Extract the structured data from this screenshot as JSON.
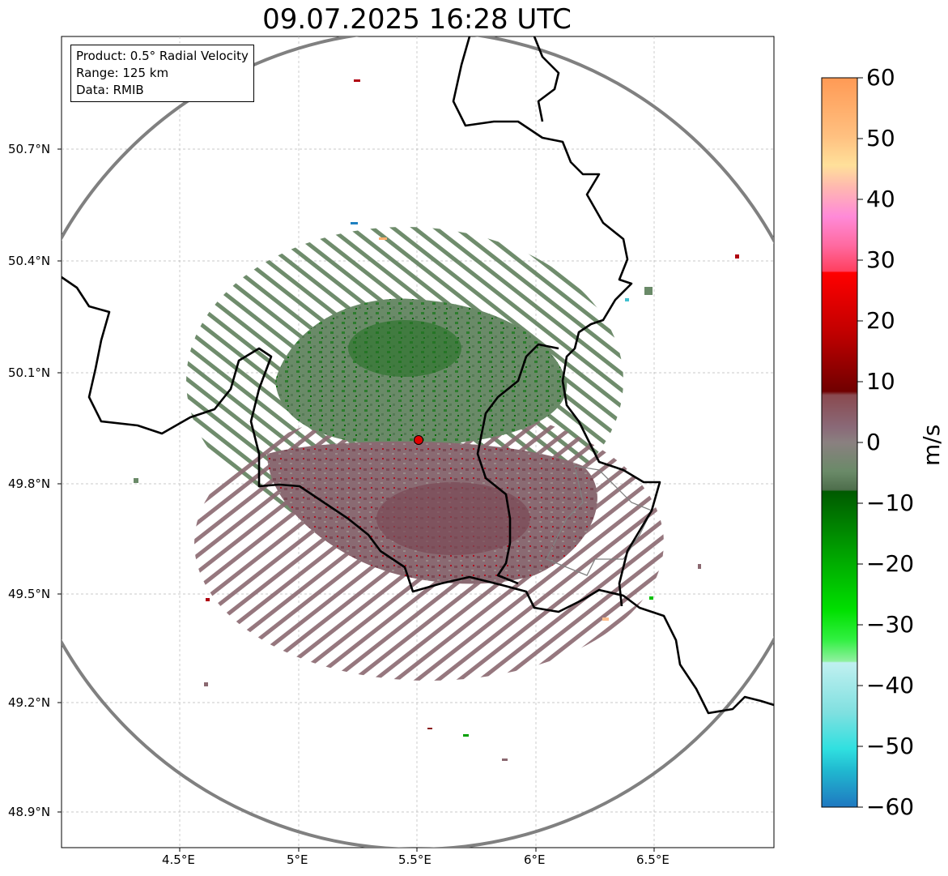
{
  "title": "09.07.2025 16:28 UTC",
  "info": {
    "product": "Product: 0.5° Radial Velocity",
    "range": "Range: 125 km",
    "source": "Data: RMIB"
  },
  "axes": {
    "y_ticks": [
      "50.7°N",
      "50.4°N",
      "50.1°N",
      "49.8°N",
      "49.5°N",
      "49.2°N",
      "48.9°N"
    ],
    "x_ticks": [
      "4.5°E",
      "5°E",
      "5.5°E",
      "6°E",
      "6.5°E"
    ]
  },
  "colorbar": {
    "unit": "m/s",
    "ticks": [
      "60",
      "50",
      "40",
      "30",
      "20",
      "10",
      "0",
      "−10",
      "−20",
      "−30",
      "−40",
      "−50",
      "−60"
    ],
    "min": -60,
    "max": 60
  },
  "radar_site": {
    "lon": 5.505,
    "lat": 49.914
  },
  "colors": {
    "approaching_strong": "#1f78b4",
    "approaching": "#00a000",
    "near_zero": "#8a7a7a",
    "receding": "#8b1a1a",
    "receding_strong": "#ff9a50",
    "site_marker": "#e00000"
  }
}
